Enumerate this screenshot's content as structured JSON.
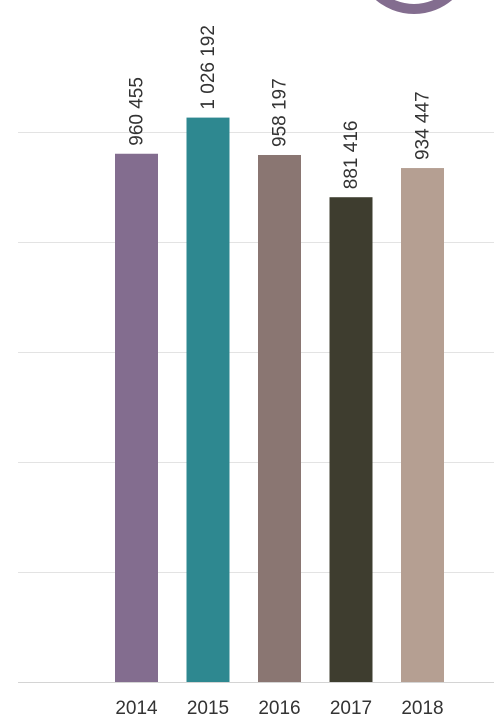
{
  "chart_data": {
    "type": "bar",
    "categories": [
      "2014",
      "2015",
      "2016",
      "2017",
      "2018"
    ],
    "values": [
      960455,
      1026192,
      958197,
      881416,
      934447
    ],
    "data_labels": [
      "960 455",
      "1 026 192",
      "958 197",
      "881 416",
      "934 447"
    ],
    "bar_colors": [
      "#836d8f",
      "#2e8890",
      "#8a7672",
      "#3e3d2f",
      "#b59f92"
    ],
    "ylim": [
      0,
      1000000
    ],
    "gridline_values": [
      0,
      200000,
      400000,
      600000,
      800000,
      1000000
    ],
    "grid": true,
    "title": "",
    "xlabel": "",
    "ylabel": ""
  },
  "decor": {
    "corner_shape_color": "#836d8f"
  }
}
